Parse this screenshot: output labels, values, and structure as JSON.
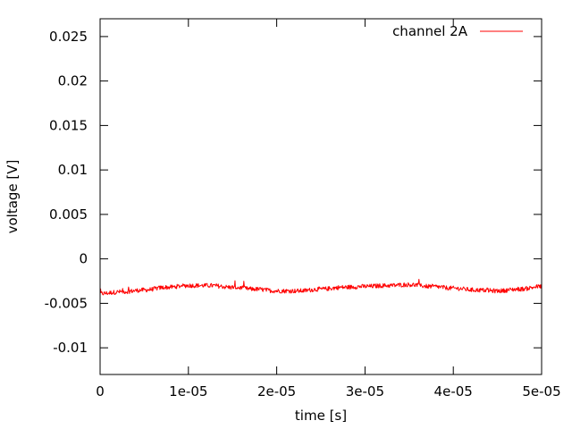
{
  "chart_data": {
    "type": "line",
    "title": "",
    "xlabel": "time [s]",
    "ylabel": "voltage [V]",
    "xlim": [
      0,
      5e-05
    ],
    "ylim": [
      -0.013,
      0.027
    ],
    "x_ticks": [
      "0",
      "1e-05",
      "2e-05",
      "3e-05",
      "4e-05",
      "5e-05"
    ],
    "x_tick_values": [
      0,
      1e-05,
      2e-05,
      3e-05,
      4e-05,
      5e-05
    ],
    "y_ticks": [
      "-0.01",
      "-0.005",
      "0",
      "0.005",
      "0.01",
      "0.015",
      "0.02",
      "0.025"
    ],
    "y_tick_values": [
      -0.01,
      -0.005,
      0,
      0.005,
      0.01,
      0.015,
      0.02,
      0.025
    ],
    "grid": false,
    "legend_position": "top-right",
    "series": [
      {
        "name": "channel 2A",
        "color": "#ff0000",
        "x": [
          0,
          2.5e-06,
          5e-06,
          7.5e-06,
          1e-05,
          1.25e-05,
          1.5e-05,
          1.75e-05,
          2e-05,
          2.25e-05,
          2.5e-05,
          2.75e-05,
          3e-05,
          3.25e-05,
          3.5e-05,
          3.75e-05,
          4e-05,
          4.25e-05,
          4.5e-05,
          4.75e-05,
          5e-05
        ],
        "y": [
          -0.0039,
          -0.0037,
          -0.0035,
          -0.0032,
          -0.003,
          -0.003,
          -0.0032,
          -0.0034,
          -0.0036,
          -0.0036,
          -0.0034,
          -0.0032,
          -0.0031,
          -0.003,
          -0.0029,
          -0.0031,
          -0.0033,
          -0.0035,
          -0.0036,
          -0.0034,
          -0.0031
        ]
      }
    ]
  }
}
